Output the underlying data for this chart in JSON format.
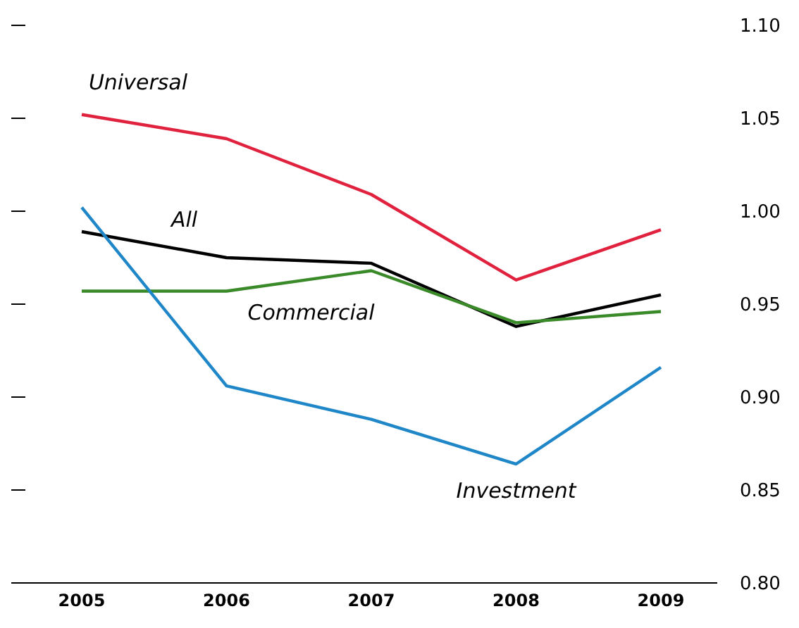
{
  "chart_data": {
    "type": "line",
    "categories": [
      "2005",
      "2006",
      "2007",
      "2008",
      "2009"
    ],
    "series": [
      {
        "name": "Universal",
        "color": "#e0223f",
        "values": [
          1.052,
          1.039,
          1.009,
          0.963,
          0.99
        ]
      },
      {
        "name": "All",
        "color": "#000000",
        "values": [
          0.989,
          0.975,
          0.972,
          0.938,
          0.955
        ]
      },
      {
        "name": "Commercial",
        "color": "#3a8a2a",
        "values": [
          0.957,
          0.957,
          0.968,
          0.94,
          0.946
        ]
      },
      {
        "name": "Investment",
        "color": "#1f86c8",
        "values": [
          1.002,
          0.906,
          0.888,
          0.864,
          0.916
        ]
      }
    ],
    "ylim": [
      0.8,
      1.1
    ],
    "yticks": [
      {
        "value": 0.8,
        "label": "0.80"
      },
      {
        "value": 0.85,
        "label": "0.85"
      },
      {
        "value": 0.9,
        "label": "0.90"
      },
      {
        "value": 0.95,
        "label": "0.95"
      },
      {
        "value": 1.0,
        "label": "1.00"
      },
      {
        "value": 1.05,
        "label": "1.05"
      },
      {
        "value": 1.1,
        "label": "1.10"
      }
    ],
    "grid": false,
    "legend": false,
    "marker": "none",
    "line_style": "solid"
  }
}
